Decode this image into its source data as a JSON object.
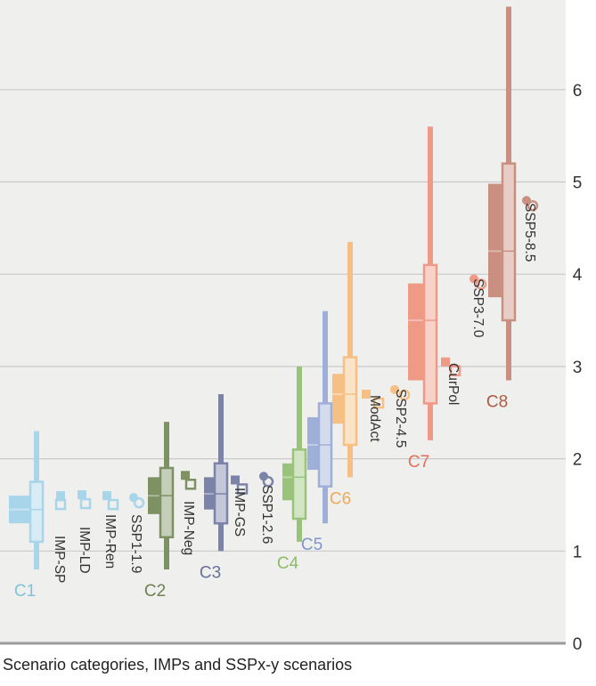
{
  "chart_data": {
    "type": "box",
    "xlabel": "Scenario categories, IMPs and SSPx-y scenarios",
    "ylim": [
      0,
      7
    ],
    "yticks": [
      0,
      1,
      2,
      3,
      4,
      5,
      6
    ],
    "grid": true,
    "categories": [
      {
        "name": "C1",
        "color": "#a8d5ea",
        "label_color": "#7fc3e0",
        "min": 0.8,
        "p5": 1.1,
        "p25": 1.3,
        "median": 1.45,
        "p75": 1.6,
        "p95": 1.75,
        "max": 2.3
      },
      {
        "name": "C2",
        "color": "#7e9163",
        "label_color": "#6d8152",
        "min": 0.8,
        "p5": 1.15,
        "p25": 1.4,
        "median": 1.6,
        "p75": 1.8,
        "p95": 1.9,
        "max": 2.4
      },
      {
        "name": "C3",
        "color": "#7b83a8",
        "label_color": "#68719a",
        "min": 1.0,
        "p5": 1.3,
        "p25": 1.45,
        "median": 1.62,
        "p75": 1.8,
        "p95": 1.95,
        "max": 2.7
      },
      {
        "name": "C4",
        "color": "#99c37a",
        "label_color": "#8cbc68",
        "min": 1.1,
        "p5": 1.35,
        "p25": 1.55,
        "median": 1.8,
        "p75": 1.95,
        "p95": 2.1,
        "max": 3.0
      },
      {
        "name": "C5",
        "color": "#9fb0d8",
        "label_color": "#7f95cc",
        "min": 1.3,
        "p5": 1.7,
        "p25": 1.88,
        "median": 2.15,
        "p75": 2.45,
        "p95": 2.6,
        "max": 3.6
      },
      {
        "name": "C6",
        "color": "#f6c085",
        "label_color": "#f2a85a",
        "min": 1.8,
        "p5": 2.15,
        "p25": 2.38,
        "median": 2.7,
        "p75": 2.92,
        "p95": 3.1,
        "max": 4.35
      },
      {
        "name": "C7",
        "color": "#ef9a86",
        "label_color": "#e56e55",
        "min": 2.2,
        "p5": 2.6,
        "p25": 2.85,
        "median": 3.5,
        "p75": 3.9,
        "p95": 4.1,
        "max": 5.6
      },
      {
        "name": "C8",
        "color": "#c98f80",
        "label_color": "#b05a43",
        "min": 2.85,
        "p5": 3.5,
        "p25": 3.75,
        "median": 4.25,
        "p75": 4.98,
        "p95": 5.2,
        "max": 6.9
      }
    ],
    "scenarios": [
      {
        "name": "IMP-SP",
        "category": "C1",
        "value": 1.6,
        "marker": "square",
        "color": "#a8d5ea"
      },
      {
        "name": "IMP-LD",
        "category": "C1",
        "value": 1.61,
        "marker": "square",
        "color": "#a8d5ea"
      },
      {
        "name": "IMP-Ren",
        "category": "C1",
        "value": 1.6,
        "marker": "square",
        "color": "#a8d5ea"
      },
      {
        "name": "SSP1-1.9",
        "category": "C1",
        "value": 1.58,
        "marker": "circle",
        "color": "#a8d5ea"
      },
      {
        "name": "IMP-Neg",
        "category": "C2",
        "value": 1.82,
        "marker": "square",
        "color": "#7e9163"
      },
      {
        "name": "IMP-GS",
        "category": "C3",
        "value": 1.77,
        "marker": "square",
        "color": "#7b83a8"
      },
      {
        "name": "SSP1-2.6",
        "category": "C3",
        "value": 1.81,
        "marker": "circle",
        "color": "#7b83a8"
      },
      {
        "name": "ModAct",
        "category": "C6",
        "value": 2.7,
        "marker": "square",
        "color": "#f6c085"
      },
      {
        "name": "SSP2-4.5",
        "category": "C6",
        "value": 2.75,
        "marker": "circle",
        "color": "#f6c085"
      },
      {
        "name": "CurPol",
        "category": "C7",
        "value": 3.05,
        "marker": "square",
        "color": "#ef9a86"
      },
      {
        "name": "SSP3-7.0",
        "category": "C7",
        "value": 3.95,
        "marker": "circle",
        "color": "#ef9a86"
      },
      {
        "name": "SSP5-8.5",
        "category": "C8",
        "value": 4.8,
        "marker": "circle",
        "color": "#c98f80"
      }
    ]
  }
}
